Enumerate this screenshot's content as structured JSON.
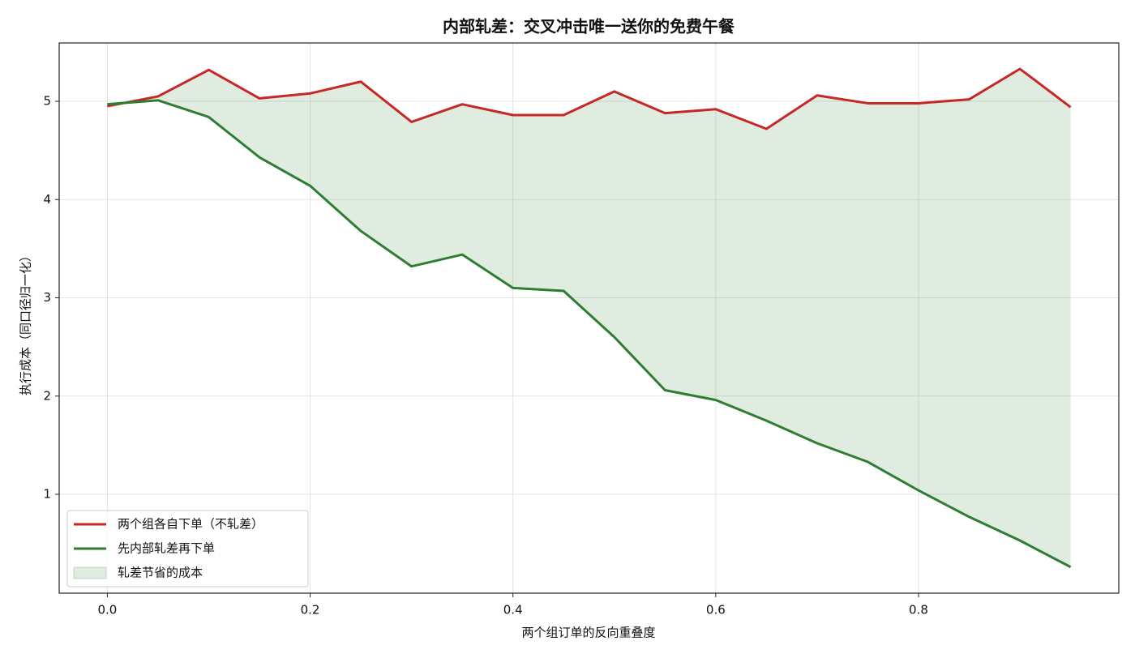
{
  "chart_data": {
    "type": "line",
    "title": "内部轧差：交叉冲击唯一送你的免费午餐",
    "x_label": "两个组订单的反向重叠度",
    "y_label": "执行成本（同口径归一化）",
    "x": [
      0.0,
      0.05,
      0.1,
      0.15,
      0.2,
      0.25,
      0.3,
      0.35,
      0.4,
      0.45,
      0.5,
      0.55,
      0.6,
      0.65,
      0.7,
      0.75,
      0.8,
      0.85,
      0.9,
      0.95
    ],
    "series": [
      {
        "name": "两个组各自下单（不轧差）",
        "color": "#c62828",
        "values": [
          4.95,
          5.05,
          5.32,
          5.03,
          5.08,
          5.2,
          4.79,
          4.97,
          4.86,
          4.86,
          5.1,
          4.88,
          4.92,
          4.72,
          5.06,
          4.98,
          4.98,
          5.02,
          5.33,
          4.94
        ]
      },
      {
        "name": "先内部轧差再下单",
        "color": "#2e7d32",
        "values": [
          4.97,
          5.01,
          4.84,
          4.43,
          4.14,
          3.68,
          3.32,
          3.44,
          3.1,
          3.07,
          2.6,
          2.06,
          1.96,
          1.75,
          1.52,
          1.33,
          1.04,
          0.77,
          0.53,
          0.26
        ]
      }
    ],
    "fill": {
      "name": "轧差节省的成本",
      "color": "#2e7d32",
      "opacity": 0.15
    },
    "xlim": [
      -0.0475,
      0.9975
    ],
    "ylim": [
      -0.006,
      5.594
    ],
    "xticks": [
      {
        "value": 0,
        "label": "0.0"
      },
      0.2,
      0.4,
      0.6,
      0.8
    ],
    "yticks": [
      1,
      2,
      3,
      4,
      5
    ],
    "grid": true,
    "legend": "lower left"
  }
}
